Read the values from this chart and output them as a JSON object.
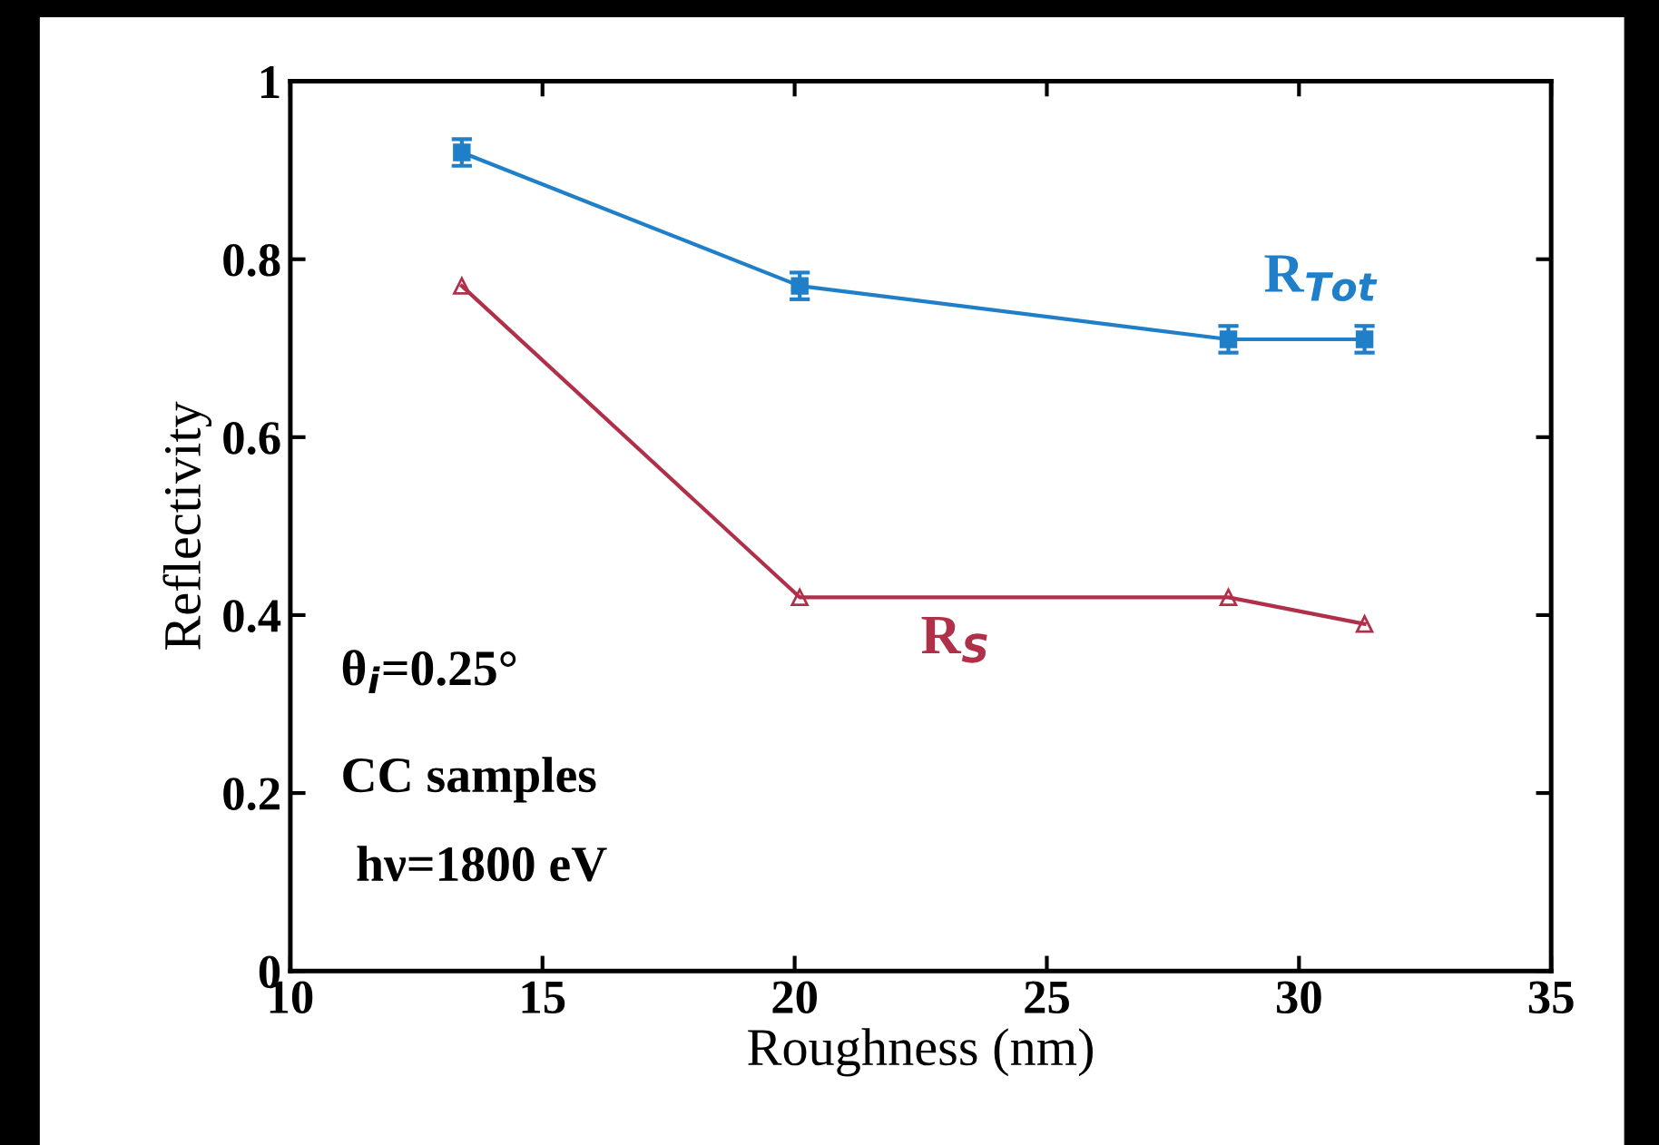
{
  "chart_data": {
    "type": "line",
    "xlabel": "Roughness (nm)",
    "ylabel": "Reflectivity",
    "x": [
      13.4,
      20.1,
      28.6,
      31.3
    ],
    "series": [
      {
        "name": "R$_{Tot}$",
        "color": "#1f7fc8",
        "values": [
          0.92,
          0.77,
          0.71,
          0.71
        ],
        "errors": [
          0.015,
          0.015,
          0.015,
          0.015
        ],
        "marker": "square"
      },
      {
        "name": "R$_{S}$",
        "color": "#b0304a",
        "values": [
          0.77,
          0.42,
          0.42,
          0.39
        ],
        "marker": "triangle"
      }
    ],
    "xlim": [
      10,
      35
    ],
    "xticks": [
      10,
      15,
      20,
      25,
      30,
      35
    ],
    "ylim": [
      0,
      1
    ],
    "yticks": [
      0,
      0.2,
      0.4,
      0.6,
      0.8,
      1
    ],
    "annotations": [
      "θ$_{i}$=0.25°",
      "CC samples",
      "hν=1800 eV"
    ],
    "grid": false,
    "legend": false,
    "line_style": "solid"
  }
}
